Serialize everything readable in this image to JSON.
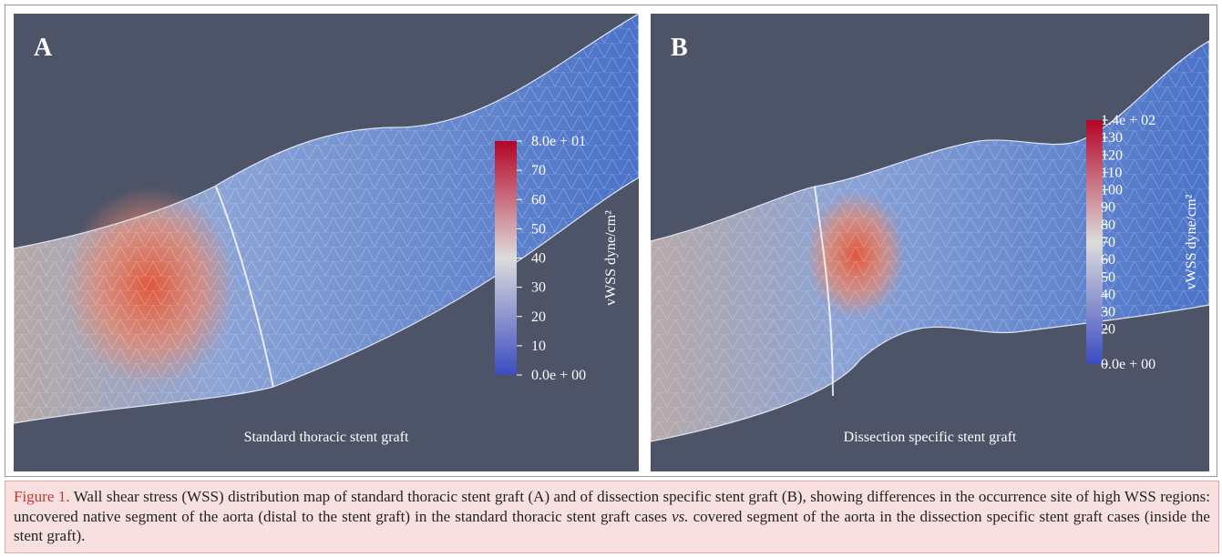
{
  "panels": [
    {
      "label": "A",
      "caption": "Standard thoracic stent graft",
      "colorbar": {
        "title": "vWSS dyne/cm²",
        "ticks": [
          "8.0e + 01",
          "70",
          "60",
          "50",
          "40",
          "30",
          "20",
          "10",
          "0.0e + 00"
        ]
      }
    },
    {
      "label": "B",
      "caption": "Dissection specific stent graft",
      "colorbar": {
        "title": "vWSS dyne/cm²",
        "ticks": [
          "1.4e + 02",
          "130",
          "120",
          "110",
          "100",
          "90",
          "80",
          "70",
          "60",
          "50",
          "40",
          "30",
          "20",
          "0.0e + 00"
        ]
      }
    }
  ],
  "caption": {
    "label": "Figure 1.",
    "text_before": "Wall shear stress (WSS) distribution map of standard thoracic stent graft (A) and of dissection specific stent graft (B), showing differences in the occurrence site of high WSS regions: uncovered native segment of the aorta (distal to the stent graft) in the standard thoracic stent graft cases ",
    "italic": "vs.",
    "text_after": " covered segment of the aorta in the dissection specific stent graft cases (inside the stent graft)."
  }
}
